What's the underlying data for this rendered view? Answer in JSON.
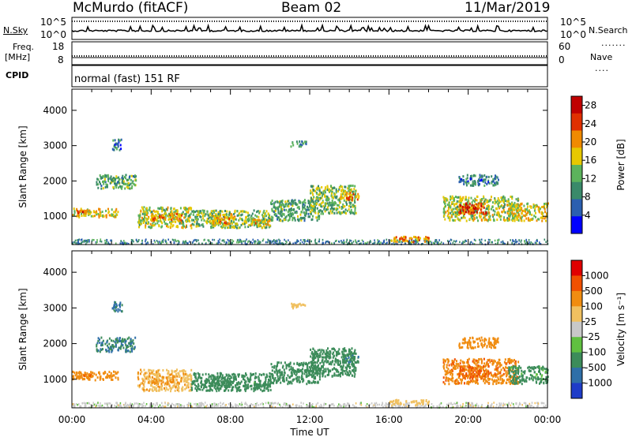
{
  "header": {
    "station": "McMurdo (fitACF)",
    "beam": "Beam 02",
    "date": "11/Mar/2019"
  },
  "panel_labels": {
    "nsky": "N.Sky",
    "nsearch": "N.Search",
    "freq_line1": "Freq.",
    "freq_line2": "[MHz]",
    "nave": "Nave",
    "cpid": "CPID",
    "cpid_value": "normal (fast) 151 RF"
  },
  "small_axes": {
    "nsky_ticks": [
      "10^5",
      "10^0"
    ],
    "nsearch_ticks": [
      "10^5",
      "10^0"
    ],
    "freq_ticks": [
      "18",
      "8"
    ],
    "nave_ticks": [
      "60",
      "0"
    ]
  },
  "chart_data": [
    {
      "type": "heatmap",
      "title": "Power",
      "ylabel": "Slant Range [km]",
      "xlabel": "",
      "x_ticks": [
        "00:00",
        "04:00",
        "08:00",
        "12:00",
        "16:00",
        "20:00",
        "00:00"
      ],
      "y_ticks": [
        1000,
        2000,
        3000,
        4000
      ],
      "ylim": [
        200,
        4600
      ],
      "xlim_hours": [
        0,
        24
      ],
      "colorbar": {
        "label": "Power [dB]",
        "ticks": [
          4,
          8,
          12,
          16,
          20,
          24,
          28
        ],
        "range": [
          0,
          30
        ],
        "colors": [
          "#0000ff",
          "#2b5fb0",
          "#3a8a6a",
          "#5cb35c",
          "#e6c800",
          "#f08a00",
          "#e03000",
          "#c00000"
        ]
      }
    },
    {
      "type": "heatmap",
      "title": "Velocity",
      "ylabel": "Slant Range [km]",
      "xlabel": "Time UT",
      "x_ticks": [
        "00:00",
        "04:00",
        "08:00",
        "12:00",
        "16:00",
        "20:00",
        "00:00"
      ],
      "y_ticks": [
        1000,
        2000,
        3000,
        4000
      ],
      "ylim": [
        200,
        4600
      ],
      "xlim_hours": [
        0,
        24
      ],
      "colorbar": {
        "label": "Velocity [m s⁻¹]",
        "ticks": [
          "1000",
          "500",
          "100",
          "25",
          "-25",
          "-100",
          "-500",
          "-1000"
        ],
        "colors": [
          "#1e3cc8",
          "#2f6fa8",
          "#3c8c5a",
          "#60c040",
          "#c8c8c8",
          "#f0c060",
          "#f08c10",
          "#f05000",
          "#e00000"
        ]
      }
    }
  ],
  "echo_regions": [
    {
      "t0": 0.0,
      "t1": 2.3,
      "r0": 1000,
      "r1": 1250,
      "p": 18,
      "v": -250
    },
    {
      "t0": 0.2,
      "t1": 1.0,
      "r0": 1100,
      "r1": 1200,
      "p": 24,
      "v": -400
    },
    {
      "t0": 1.2,
      "t1": 3.2,
      "r0": 1800,
      "r1": 2200,
      "p": 12,
      "v": 500
    },
    {
      "t0": 2.0,
      "t1": 2.5,
      "r0": 2900,
      "r1": 3200,
      "p": 8,
      "v": 600
    },
    {
      "t0": 3.3,
      "t1": 6.0,
      "r0": 700,
      "r1": 1300,
      "p": 16,
      "v": -80
    },
    {
      "t0": 4.0,
      "t1": 5.5,
      "r0": 900,
      "r1": 1100,
      "p": 22,
      "v": -120
    },
    {
      "t0": 6.0,
      "t1": 10.0,
      "r0": 700,
      "r1": 1200,
      "p": 14,
      "v": 200
    },
    {
      "t0": 7.0,
      "t1": 8.2,
      "r0": 800,
      "r1": 1100,
      "p": 21,
      "v": 250
    },
    {
      "t0": 9.0,
      "t1": 10.0,
      "r0": 750,
      "r1": 950,
      "p": 20,
      "v": 150
    },
    {
      "t0": 10.0,
      "t1": 12.5,
      "r0": 900,
      "r1": 1500,
      "p": 12,
      "v": 300
    },
    {
      "t0": 11.0,
      "t1": 11.8,
      "r0": 3000,
      "r1": 3150,
      "p": 10,
      "v": -60
    },
    {
      "t0": 12.0,
      "t1": 14.3,
      "r0": 1100,
      "r1": 1900,
      "p": 14,
      "v": 200
    },
    {
      "t0": 13.5,
      "t1": 14.5,
      "r0": 1500,
      "r1": 1700,
      "p": 22,
      "v": 400
    },
    {
      "t0": 16.0,
      "t1": 18.0,
      "r0": 300,
      "r1": 450,
      "p": 22,
      "v": -60
    },
    {
      "t0": 18.7,
      "t1": 22.5,
      "r0": 900,
      "r1": 1600,
      "p": 16,
      "v": -400
    },
    {
      "t0": 19.5,
      "t1": 21.0,
      "r0": 1100,
      "r1": 1400,
      "p": 26,
      "v": -600
    },
    {
      "t0": 19.5,
      "t1": 21.5,
      "r0": 1900,
      "r1": 2200,
      "p": 8,
      "v": -200
    },
    {
      "t0": 22.0,
      "t1": 24.0,
      "r0": 900,
      "r1": 1400,
      "p": 18,
      "v": 150
    }
  ]
}
